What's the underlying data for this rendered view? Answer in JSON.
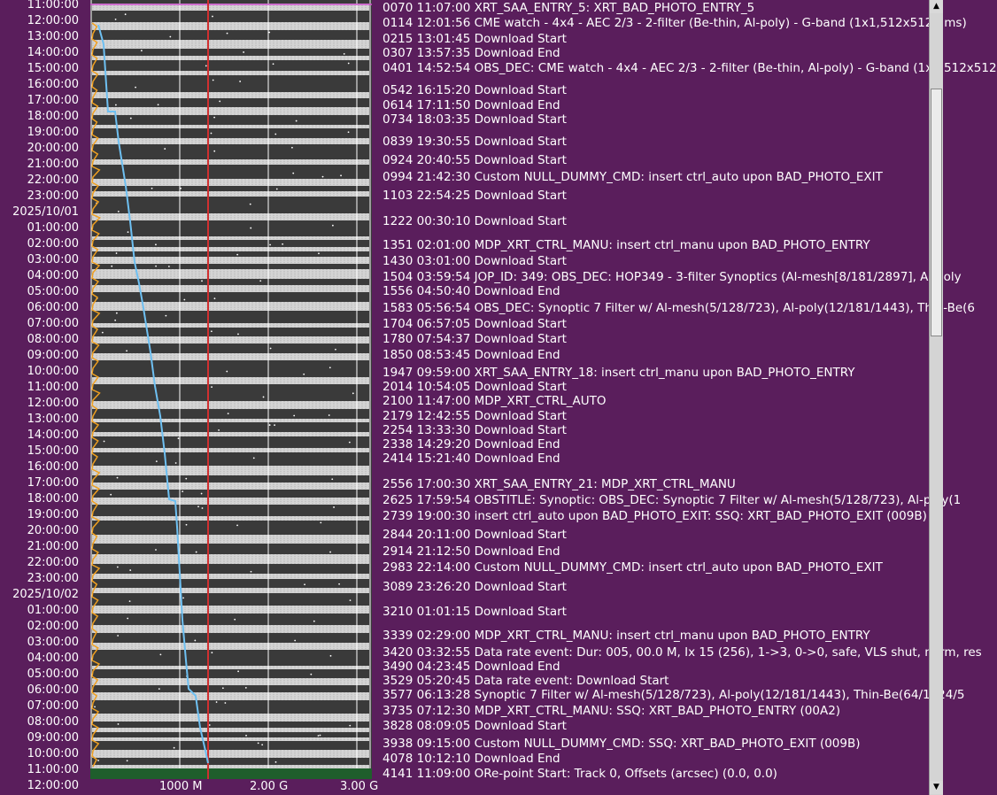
{
  "time_axis": {
    "labels": [
      "11:00:00",
      "12:00:00",
      "13:00:00",
      "14:00:00",
      "15:00:00",
      "16:00:00",
      "17:00:00",
      "18:00:00",
      "19:00:00",
      "20:00:00",
      "21:00:00",
      "22:00:00",
      "23:00:00",
      "2025/10/01",
      "01:00:00",
      "02:00:00",
      "03:00:00",
      "04:00:00",
      "05:00:00",
      "06:00:00",
      "07:00:00",
      "08:00:00",
      "09:00:00",
      "10:00:00",
      "11:00:00",
      "12:00:00",
      "13:00:00",
      "14:00:00",
      "15:00:00",
      "16:00:00",
      "17:00:00",
      "18:00:00",
      "19:00:00",
      "20:00:00",
      "21:00:00",
      "22:00:00",
      "23:00:00",
      "2025/10/02",
      "01:00:00",
      "02:00:00",
      "03:00:00",
      "04:00:00",
      "05:00:00",
      "06:00:00",
      "07:00:00",
      "08:00:00",
      "09:00:00",
      "10:00:00",
      "11:00:00",
      "12:00:00"
    ]
  },
  "x_axis": {
    "ticks": [
      "1000 M",
      "2.00 G",
      "3.00 G"
    ]
  },
  "colors": {
    "background": "#5a1e5c",
    "cumulative_line": "#6ec0f2",
    "buffer_line": "#f0a020",
    "limit_marker": "#d03030",
    "band_dark": "#3a3a3a",
    "band_light": "#f0f0f0",
    "ground_contact": "#1f5e2c"
  },
  "events": [
    {
      "text": "0070 11:07:00 XRT_SAA_ENTRY_5: XRT_BAD_PHOTO_ENTRY_5"
    },
    {
      "text": "0114 12:01:56 CME watch - 4x4 - AEC 2/3 - 2-filter (Be-thin, Al-poly) - G-band (1x1,512x512,1ms)"
    },
    {
      "text": "0215 13:01:45 Download Start"
    },
    {
      "text": "0307 13:57:35 Download End"
    },
    {
      "text": "0401 14:52:54 OBS_DEC: CME watch - 4x4 - AEC 2/3 - 2-filter (Be-thin, Al-poly) - G-band (1x1,512x512"
    },
    {
      "text": "0542 16:15:20 Download Start"
    },
    {
      "text": "0614 17:11:50 Download End"
    },
    {
      "text": "0734 18:03:35 Download Start"
    },
    {
      "text": "0839 19:30:55 Download Start"
    },
    {
      "text": "0924 20:40:55 Download Start"
    },
    {
      "text": "0994 21:42:30 Custom NULL_DUMMY_CMD: insert ctrl_auto upon BAD_PHOTO_EXIT"
    },
    {
      "text": "1103 22:54:25 Download Start"
    },
    {
      "text": "1222 00:30:10 Download Start"
    },
    {
      "text": "1351 02:01:00 MDP_XRT_CTRL_MANU: insert ctrl_manu upon BAD_PHOTO_ENTRY"
    },
    {
      "text": "1430 03:01:00 Download Start"
    },
    {
      "text": "1504 03:59:54 JOP_ID: 349: OBS_DEC: HOP349 - 3-filter Synoptics (Al-mesh[8/181/2897], Al-poly"
    },
    {
      "text": "1556 04:50:40 Download End"
    },
    {
      "text": "1583 05:56:54 OBS_DEC: Synoptic 7 Filter w/ Al-mesh(5/128/723), Al-poly(12/181/1443), Thin-Be(6"
    },
    {
      "text": "1704 06:57:05 Download Start"
    },
    {
      "text": "1780 07:54:37 Download Start"
    },
    {
      "text": "1850 08:53:45 Download End"
    },
    {
      "text": "1947 09:59:00 XRT_SAA_ENTRY_18: insert ctrl_manu upon BAD_PHOTO_ENTRY"
    },
    {
      "text": "2014 10:54:05 Download Start"
    },
    {
      "text": "2100 11:47:00 MDP_XRT_CTRL_AUTO"
    },
    {
      "text": "2179 12:42:55 Download Start"
    },
    {
      "text": "2254 13:33:30 Download Start"
    },
    {
      "text": "2338 14:29:20 Download End"
    },
    {
      "text": "2414 15:21:40 Download End"
    },
    {
      "text": "2556 17:00:30 XRT_SAA_ENTRY_21: MDP_XRT_CTRL_MANU"
    },
    {
      "text": "2625 17:59:54 OBSTITLE: Synoptic: OBS_DEC: Synoptic 7 Filter w/ Al-mesh(5/128/723), Al-poly(1"
    },
    {
      "text": "2739 19:00:30 insert ctrl_auto upon BAD_PHOTO_EXIT: SSQ: XRT_BAD_PHOTO_EXIT (009B)"
    },
    {
      "text": "2844 20:11:00 Download Start"
    },
    {
      "text": "2914 21:12:50 Download End"
    },
    {
      "text": "2983 22:14:00 Custom NULL_DUMMY_CMD: insert ctrl_auto upon BAD_PHOTO_EXIT"
    },
    {
      "text": "3089 23:26:20 Download Start"
    },
    {
      "text": "3210 01:01:15 Download Start"
    },
    {
      "text": "3339 02:29:00 MDP_XRT_CTRL_MANU: insert ctrl_manu upon BAD_PHOTO_ENTRY"
    },
    {
      "text": "3420 03:32:55 Data rate event: Dur: 005, 00.0 M, Ix 15 (256), 1->3, 0->0, safe, VLS shut, norm, res"
    },
    {
      "text": "3490 04:23:45 Download End"
    },
    {
      "text": "3529 05:20:45 Data rate event: Download Start"
    },
    {
      "text": "3577 06:13:28 Synoptic 7 Filter w/ Al-mesh(5/128/723), Al-poly(12/181/1443), Thin-Be(64/1024/5"
    },
    {
      "text": "3735 07:12:30 MDP_XRT_CTRL_MANU: SSQ: XRT_BAD_PHOTO_ENTRY (00A2)"
    },
    {
      "text": "3828 08:09:05 Download Start"
    },
    {
      "text": "3938 09:15:00 Custom NULL_DUMMY_CMD: SSQ: XRT_BAD_PHOTO_EXIT (009B)"
    },
    {
      "text": "4078 10:12:10 Download End"
    },
    {
      "text": "4141 11:09:00 ORe-point Start: Track 0, Offsets (arcsec) (0.0, 0.0)"
    }
  ],
  "scrollbar": {
    "up_icon": "triangle-up-icon",
    "down_icon": "triangle-down-icon"
  }
}
